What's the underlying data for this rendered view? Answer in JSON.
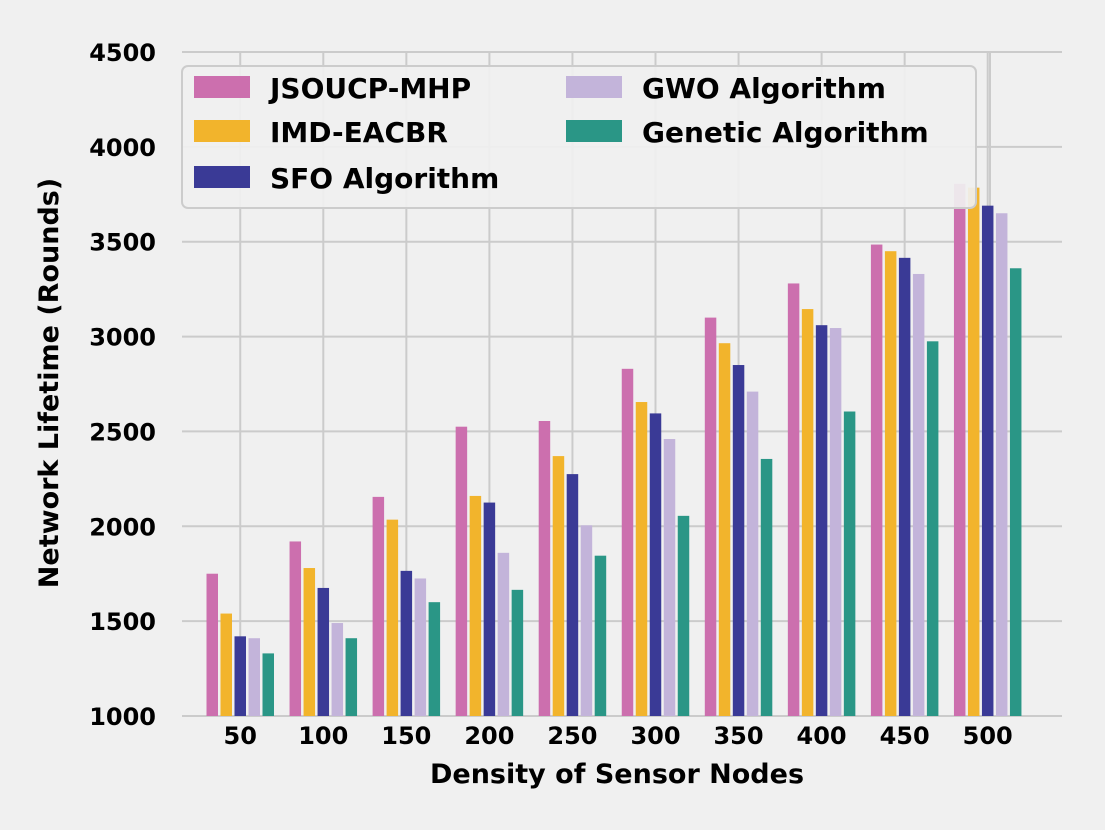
{
  "chart_data": {
    "type": "bar",
    "title": "",
    "xlabel": "Density of Sensor Nodes",
    "ylabel": "Network Lifetime (Rounds)",
    "categories": [
      "50",
      "100",
      "150",
      "200",
      "250",
      "300",
      "350",
      "400",
      "450",
      "500"
    ],
    "ylim": [
      1000,
      4500
    ],
    "yticks": [
      1000,
      1500,
      2000,
      2500,
      3000,
      3500,
      4000,
      4500
    ],
    "grid": true,
    "legend_position": "top-left",
    "series": [
      {
        "name": "JSOUCP-MHP",
        "color": "#cc6fae",
        "values": [
          1750,
          1920,
          2155,
          2525,
          2555,
          2830,
          3100,
          3280,
          3485,
          3805
        ]
      },
      {
        "name": "IMD-EACBR",
        "color": "#f2b42c",
        "values": [
          1540,
          1780,
          2035,
          2160,
          2370,
          2655,
          2965,
          3145,
          3450,
          3785
        ]
      },
      {
        "name": "SFO Algorithm",
        "color": "#3a3a96",
        "values": [
          1420,
          1675,
          1765,
          2125,
          2275,
          2595,
          2850,
          3060,
          3415,
          3690
        ]
      },
      {
        "name": "GWO Algorithm",
        "color": "#c3b4da",
        "values": [
          1410,
          1490,
          1725,
          1860,
          2005,
          2460,
          2710,
          3045,
          3330,
          3650
        ]
      },
      {
        "name": "Genetic Algorithm",
        "color": "#2a9686",
        "values": [
          1330,
          1410,
          1600,
          1665,
          1845,
          2055,
          2355,
          2605,
          2975,
          3360
        ]
      }
    ]
  }
}
